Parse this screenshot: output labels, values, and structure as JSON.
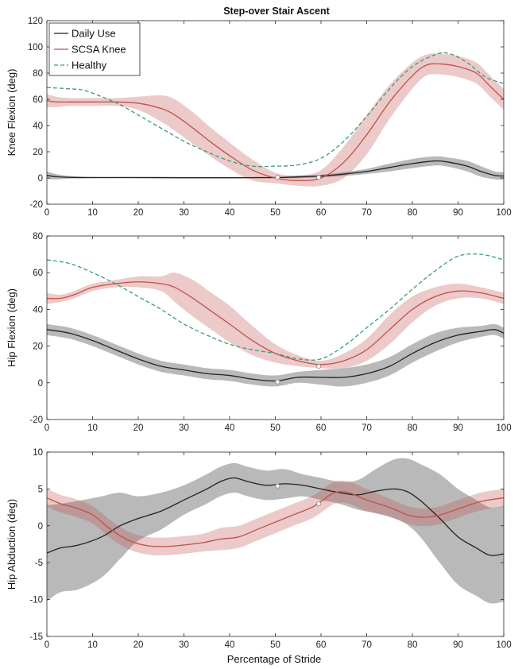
{
  "figure_title": "Step-over Stair Ascent",
  "xlabel": "Percentage of Stride",
  "legend": [
    {
      "name": "Daily Use",
      "color": "#222222",
      "style": "solid"
    },
    {
      "name": "SCSA Knee",
      "color": "#c0504d",
      "style": "solid"
    },
    {
      "name": "Healthy",
      "color": "#3a9a78",
      "style": "dashed"
    }
  ],
  "chart_data": [
    {
      "type": "line",
      "ylabel": "Knee Flexion (deg)",
      "xlim": [
        0,
        100
      ],
      "ylim": [
        -20,
        120
      ],
      "xticks": [
        0,
        10,
        20,
        30,
        40,
        50,
        60,
        70,
        80,
        90,
        100
      ],
      "yticks": [
        -20,
        0,
        20,
        40,
        60,
        80,
        100,
        120
      ],
      "legend_placement": "top-left",
      "series": [
        {
          "name": "Daily Use",
          "color": "#222222",
          "x": [
            0,
            2,
            5,
            10,
            20,
            30,
            40,
            50,
            55,
            60,
            65,
            70,
            75,
            80,
            85,
            88,
            92,
            95,
            98,
            100
          ],
          "y": [
            2,
            1,
            0.5,
            0.3,
            0.3,
            0.2,
            0.2,
            0.3,
            0.8,
            1.5,
            3,
            5,
            8,
            11,
            13,
            12,
            9,
            5,
            2,
            1.5
          ],
          "band": [
            3,
            2,
            1,
            0.5,
            0.5,
            0.5,
            0.5,
            0.5,
            1,
            1,
            1.5,
            2,
            3,
            3.5,
            3.5,
            3.5,
            4,
            4,
            3,
            3
          ],
          "marker": {
            "x": 50.5,
            "y": 0.5
          }
        },
        {
          "name": "SCSA Knee",
          "color": "#c0504d",
          "x": [
            0,
            2,
            5,
            10,
            15,
            20,
            25,
            28,
            32,
            36,
            40,
            45,
            50,
            55,
            60,
            65,
            70,
            75,
            80,
            83,
            86,
            90,
            94,
            97,
            100
          ],
          "y": [
            59,
            58,
            58,
            58,
            58,
            57,
            53,
            48,
            38,
            27,
            17,
            6,
            0,
            -2,
            0,
            12,
            33,
            58,
            78,
            86,
            87,
            85,
            80,
            70,
            60
          ],
          "band": [
            5,
            4,
            3,
            3,
            3,
            5,
            10,
            12,
            12,
            11,
            10,
            8,
            4,
            4,
            6,
            12,
            15,
            13,
            10,
            8,
            8,
            8,
            8,
            8,
            8
          ],
          "marker": {
            "x": 59.5,
            "y": 0.5
          }
        },
        {
          "name": "Healthy",
          "color": "#3a9a78",
          "dashed": true,
          "x": [
            0,
            5,
            8,
            12,
            16,
            20,
            25,
            30,
            35,
            40,
            45,
            50,
            55,
            60,
            65,
            70,
            75,
            80,
            85,
            88,
            92,
            96,
            100
          ],
          "y": [
            69,
            68,
            67,
            62,
            56,
            48,
            38,
            28,
            20,
            13,
            9,
            9,
            10,
            15,
            28,
            47,
            68,
            85,
            94,
            95,
            88,
            77,
            72
          ]
        }
      ]
    },
    {
      "type": "line",
      "ylabel": "Hip Flexion (deg)",
      "xlim": [
        0,
        100
      ],
      "ylim": [
        -20,
        80
      ],
      "xticks": [
        0,
        10,
        20,
        30,
        40,
        50,
        60,
        70,
        80,
        90,
        100
      ],
      "yticks": [
        -20,
        0,
        20,
        40,
        60,
        80
      ],
      "series": [
        {
          "name": "Daily Use",
          "color": "#222222",
          "x": [
            0,
            5,
            10,
            15,
            20,
            25,
            30,
            35,
            40,
            45,
            50,
            55,
            60,
            65,
            70,
            75,
            80,
            85,
            90,
            95,
            98,
            100
          ],
          "y": [
            29,
            27,
            23,
            18,
            13,
            9,
            7,
            5,
            4,
            2,
            1,
            3,
            3,
            3,
            5,
            9,
            16,
            22,
            26,
            28,
            29,
            27
          ],
          "band": [
            3,
            3,
            3,
            3,
            3,
            3,
            3,
            3,
            3,
            3,
            3,
            3,
            4,
            5,
            5,
            5,
            5,
            5,
            4,
            3,
            3,
            3
          ],
          "marker": {
            "x": 50.5,
            "y": 0.5
          }
        },
        {
          "name": "SCSA Knee",
          "color": "#c0504d",
          "x": [
            0,
            3,
            6,
            10,
            15,
            20,
            25,
            28,
            32,
            36,
            40,
            45,
            50,
            55,
            60,
            65,
            70,
            75,
            80,
            85,
            90,
            95,
            100
          ],
          "y": [
            46,
            46,
            48,
            52,
            54,
            55,
            54,
            52,
            46,
            39,
            32,
            23,
            16,
            12,
            10,
            12,
            18,
            29,
            40,
            47,
            50,
            49,
            46
          ],
          "band": [
            3,
            2,
            2,
            2,
            2,
            3,
            4,
            8,
            10,
            10,
            10,
            8,
            5,
            3,
            2,
            4,
            6,
            8,
            7,
            5,
            4,
            3,
            3
          ],
          "marker": {
            "x": 59.5,
            "y": 9
          }
        },
        {
          "name": "Healthy",
          "color": "#3a9a78",
          "dashed": true,
          "x": [
            0,
            5,
            10,
            15,
            20,
            25,
            30,
            35,
            40,
            45,
            50,
            55,
            60,
            65,
            70,
            75,
            80,
            85,
            90,
            95,
            100
          ],
          "y": [
            67,
            65,
            60,
            54,
            47,
            40,
            32,
            26,
            21,
            18,
            16,
            13,
            13,
            20,
            30,
            40,
            51,
            61,
            69,
            70,
            67
          ]
        }
      ]
    },
    {
      "type": "line",
      "ylabel": "Hip Abduction (deg)",
      "xlim": [
        0,
        100
      ],
      "ylim": [
        -15,
        10
      ],
      "xticks": [
        0,
        10,
        20,
        30,
        40,
        50,
        60,
        70,
        80,
        90,
        100
      ],
      "yticks": [
        -15,
        -10,
        -5,
        0,
        5,
        10
      ],
      "series": [
        {
          "name": "Daily Use",
          "color": "#222222",
          "x": [
            0,
            3,
            7,
            12,
            16,
            20,
            25,
            30,
            35,
            38,
            41,
            44,
            48,
            52,
            56,
            60,
            64,
            68,
            72,
            76,
            79,
            82,
            86,
            90,
            94,
            97,
            100
          ],
          "y": [
            -3.7,
            -3,
            -2.6,
            -1.5,
            0,
            1,
            2,
            3.5,
            5,
            6,
            6.5,
            6,
            5.5,
            5.7,
            5.5,
            5,
            4.5,
            4.2,
            4.7,
            5,
            4.6,
            3.3,
            1,
            -1.5,
            -3,
            -4,
            -3.8
          ],
          "band": [
            6.5,
            6,
            6,
            5.5,
            4.5,
            3,
            2.5,
            2,
            2,
            2,
            2,
            2,
            2,
            2,
            1.5,
            1.5,
            1.5,
            2,
            3,
            4,
            4.5,
            5,
            6,
            6.5,
            6.5,
            6.5,
            6.5
          ],
          "marker": {
            "x": 50.5,
            "y": 5.4
          }
        },
        {
          "name": "SCSA Knee",
          "color": "#c0504d",
          "x": [
            0,
            3,
            6,
            10,
            14,
            18,
            22,
            26,
            30,
            34,
            38,
            42,
            46,
            50,
            54,
            58,
            60,
            63,
            66,
            70,
            75,
            80,
            85,
            90,
            95,
            100
          ],
          "y": [
            3.8,
            3,
            2.5,
            1.5,
            -0.5,
            -2,
            -2.7,
            -2.8,
            -2.6,
            -2.3,
            -1.8,
            -1.5,
            -0.5,
            0.5,
            1.5,
            2.5,
            3.3,
            4.5,
            4.5,
            3.5,
            2.5,
            1.3,
            1.3,
            2.3,
            3.3,
            3.8
          ],
          "band": [
            1.2,
            1.2,
            1.2,
            1.2,
            1.2,
            1.2,
            1.2,
            1.2,
            1.2,
            1.2,
            1.5,
            1.5,
            1.5,
            1.5,
            1.5,
            1.5,
            1.5,
            1.5,
            1.5,
            1.5,
            1.2,
            1.2,
            1.2,
            1.2,
            1.2,
            1.2
          ],
          "marker": {
            "x": 59.5,
            "y": 3
          }
        }
      ]
    }
  ]
}
